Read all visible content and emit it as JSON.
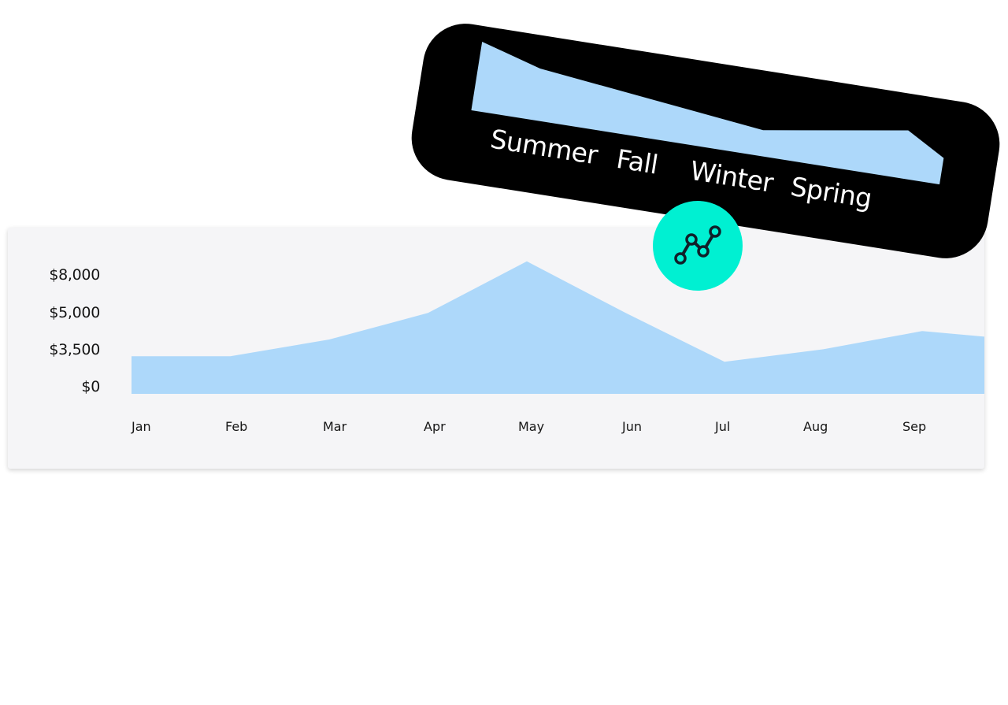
{
  "colors": {
    "area_fill": "#add8fa",
    "card_bg": "#f5f5f7",
    "pill_bg": "#000000",
    "badge_bg": "#00f0d2",
    "text": "#151515"
  },
  "icons": {
    "badge": "line-chart-icon"
  },
  "chart_data": [
    {
      "type": "area",
      "title": "",
      "xlabel": "",
      "ylabel": "",
      "y_ticks": [
        "$8,000",
        "$5,000",
        "$3,500",
        "$0"
      ],
      "y_tick_values": [
        8000,
        5000,
        3500,
        0
      ],
      "categories": [
        "Jan",
        "Feb",
        "Mar",
        "Apr",
        "May",
        "Jun",
        "Jul",
        "Aug",
        "Sep"
      ],
      "values": [
        2700,
        2700,
        3900,
        5800,
        9500,
        5800,
        2300,
        3200,
        4500
      ],
      "trailing_value": 4100,
      "ylim": [
        0,
        10000
      ],
      "grid": false,
      "legend": "none"
    },
    {
      "type": "area",
      "categories": [
        "Summer",
        "Fall",
        "Winter",
        "Spring"
      ],
      "values": [
        4000,
        3000,
        1500,
        2800
      ],
      "grid": false,
      "legend": "none"
    }
  ]
}
